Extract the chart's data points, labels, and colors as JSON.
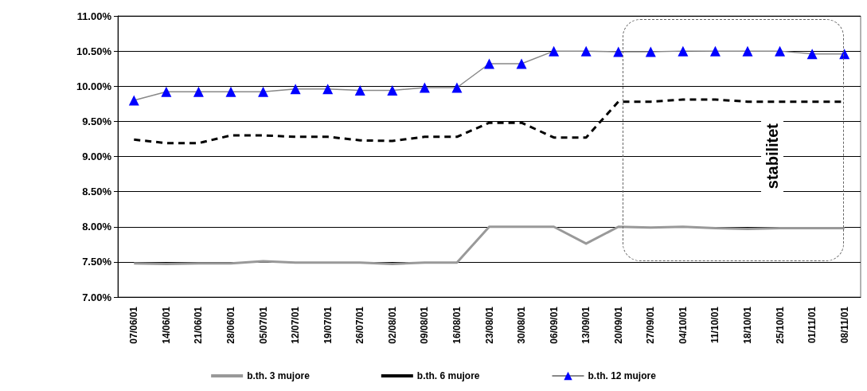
{
  "chart_data": {
    "type": "line",
    "categories": [
      "07/06/01",
      "14/06/01",
      "21/06/01",
      "28/06/01",
      "05/07/01",
      "12/07/01",
      "19/07/01",
      "26/07/01",
      "02/08/01",
      "09/08/01",
      "16/08/01",
      "23/08/01",
      "30/08/01",
      "06/09/01",
      "13/09/01",
      "20/09/01",
      "27/09/01",
      "04/10/01",
      "11/10/01",
      "18/10/01",
      "25/10/01",
      "01/11/01",
      "08/11/01"
    ],
    "series": [
      {
        "name": "b.th. 3 mujore",
        "color": "#999999",
        "line_style": "solid",
        "marker": "none",
        "values": [
          7.48,
          7.47,
          7.48,
          7.48,
          7.51,
          7.49,
          7.49,
          7.49,
          7.47,
          7.49,
          7.49,
          8.0,
          8.0,
          8.0,
          7.76,
          8.0,
          7.99,
          8.0,
          7.98,
          7.97,
          7.98,
          7.98,
          7.98
        ]
      },
      {
        "name": "b.th. 6 mujore",
        "color": "#000000",
        "line_style": "dashed",
        "marker": "none",
        "values": [
          9.24,
          9.19,
          9.19,
          9.3,
          9.3,
          9.28,
          9.28,
          9.23,
          9.22,
          9.28,
          9.28,
          9.48,
          9.48,
          9.27,
          9.27,
          9.78,
          9.78,
          9.81,
          9.81,
          9.78,
          9.78,
          9.78,
          9.78
        ]
      },
      {
        "name": "b.th. 12 mujore",
        "color": "#0000ff",
        "line_style": "solid",
        "marker": "triangle",
        "values": [
          9.8,
          9.92,
          9.92,
          9.92,
          9.92,
          9.96,
          9.96,
          9.94,
          9.94,
          9.98,
          9.98,
          10.32,
          10.32,
          10.5,
          10.5,
          10.49,
          10.49,
          10.5,
          10.5,
          10.5,
          10.5,
          10.46,
          10.46
        ]
      }
    ],
    "ylim": [
      7,
      11
    ],
    "yticks": [
      {
        "value": 7,
        "label": "7.00%"
      },
      {
        "value": 7.5,
        "label": "7.50%"
      },
      {
        "value": 8,
        "label": "8.00%"
      },
      {
        "value": 8.5,
        "label": "8.50%"
      },
      {
        "value": 9,
        "label": "9.00%"
      },
      {
        "value": 9.5,
        "label": "9.50%"
      },
      {
        "value": 10,
        "label": "10.00%"
      },
      {
        "value": 10.5,
        "label": "10.50%"
      },
      {
        "value": 11,
        "label": "11.00%"
      }
    ],
    "annotations": [
      "stabilitet"
    ],
    "grid": "y",
    "legend": "bottom"
  }
}
